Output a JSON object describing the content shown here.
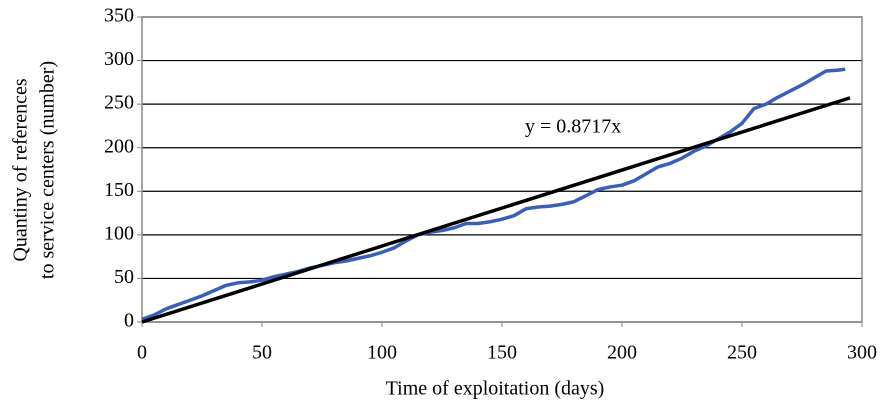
{
  "chart_data": {
    "type": "line",
    "ylabel": [
      "Quantiny of references",
      "to service centers (number)"
    ],
    "xlabel": "Time of exploitation (days)",
    "annotation": "y = 0.8717x",
    "xlim": [
      0,
      300
    ],
    "xticks": [
      0,
      50,
      100,
      150,
      200,
      250,
      300
    ],
    "ylim": [
      0,
      350
    ],
    "yticks": [
      0,
      50,
      100,
      150,
      200,
      250,
      300,
      350
    ],
    "grid": true,
    "series": [
      {
        "name": "data",
        "color": "#3a5fb4",
        "width": 3.5,
        "x": [
          0,
          5,
          10,
          15,
          20,
          25,
          30,
          35,
          40,
          45,
          50,
          55,
          60,
          65,
          70,
          75,
          80,
          85,
          90,
          95,
          100,
          105,
          110,
          115,
          120,
          125,
          130,
          135,
          140,
          145,
          150,
          155,
          160,
          165,
          170,
          175,
          180,
          185,
          190,
          195,
          200,
          205,
          210,
          215,
          220,
          225,
          230,
          235,
          240,
          245,
          250,
          255,
          260,
          265,
          270,
          275,
          280,
          285,
          290,
          293
        ],
        "values": [
          3,
          8,
          15,
          20,
          25,
          30,
          36,
          42,
          45,
          46,
          48,
          52,
          55,
          58,
          62,
          65,
          68,
          70,
          73,
          76,
          80,
          85,
          93,
          100,
          103,
          105,
          108,
          113,
          113,
          115,
          118,
          122,
          130,
          132,
          133,
          135,
          138,
          145,
          152,
          155,
          157,
          162,
          170,
          178,
          182,
          188,
          196,
          202,
          210,
          218,
          228,
          245,
          250,
          258,
          265,
          272,
          280,
          288,
          289,
          290
        ]
      },
      {
        "name": "trend",
        "color": "#000000",
        "width": 3.5,
        "x": [
          0,
          295
        ],
        "values": [
          0,
          257.2
        ]
      }
    ]
  }
}
